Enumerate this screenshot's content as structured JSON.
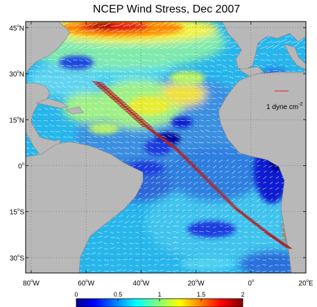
{
  "chart_data": {
    "type": "heatmap",
    "title": "NCEP Wind Stress, Dec 2007",
    "x_ticks": [
      {
        "deg": "80",
        "hemi": "W"
      },
      {
        "deg": "60",
        "hemi": "W"
      },
      {
        "deg": "40",
        "hemi": "W"
      },
      {
        "deg": "20",
        "hemi": "W"
      },
      {
        "deg": "0",
        "hemi": ""
      },
      {
        "deg": "20",
        "hemi": "E"
      }
    ],
    "y_ticks": [
      {
        "deg": "45",
        "hemi": "N"
      },
      {
        "deg": "30",
        "hemi": "N"
      },
      {
        "deg": "15",
        "hemi": "N"
      },
      {
        "deg": "0",
        "hemi": ""
      },
      {
        "deg": "15",
        "hemi": "S"
      },
      {
        "deg": "30",
        "hemi": "S"
      }
    ],
    "xlim_lon": [
      -82,
      20
    ],
    "ylim_lat": [
      -35,
      47
    ],
    "reference_vector": {
      "magnitude": 1,
      "label": "1 dyne cm",
      "exponent": "-2",
      "color": "#d83c3c"
    },
    "colorbar": {
      "ticks": [
        "0",
        "0.5",
        "1",
        "1.5",
        "2"
      ],
      "range": [
        0,
        2
      ],
      "colormap": "jet",
      "location": "bottom"
    },
    "land_color": "#b8b8b8",
    "vector_color": "#ffffff",
    "ship_track_color": "#b22222",
    "grid": true
  }
}
